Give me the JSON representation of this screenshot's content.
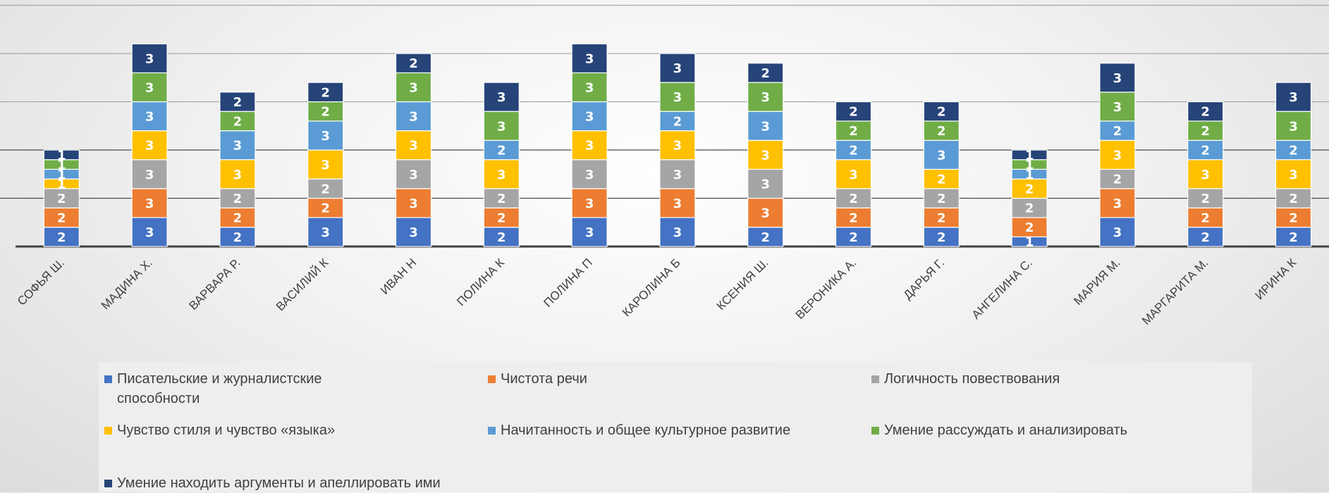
{
  "chart_data": {
    "type": "bar",
    "stacked": true,
    "categories": [
      "СОФЬЯ Ш.",
      "МАДИНА Х.",
      "ВАРВАРА Р.",
      "ВАСИЛИЙ К",
      "ИВАН Н",
      "ПОЛИНА К",
      "ПОЛИНА П",
      "КАРОЛИНА Б",
      "КСЕНИЯ Ш.",
      "ВЕРОНИКА А.",
      "ДАРЬЯ Г.",
      "АНГЕЛИНА С.",
      "МАРИЯ М.",
      "МАРГАРИТА М.",
      "ИРИНА К"
    ],
    "series": [
      {
        "name": "Писательские и журналистские способности",
        "color": "#4472C4",
        "values": [
          2,
          3,
          2,
          3,
          3,
          2,
          3,
          3,
          2,
          2,
          2,
          1,
          3,
          2,
          2
        ]
      },
      {
        "name": "Чистота речи",
        "color": "#ED7D31",
        "values": [
          2,
          3,
          2,
          2,
          3,
          2,
          3,
          3,
          3,
          2,
          2,
          2,
          3,
          2,
          2
        ]
      },
      {
        "name": "Логичность повествования",
        "color": "#A5A5A5",
        "values": [
          2,
          3,
          2,
          2,
          3,
          2,
          3,
          3,
          3,
          2,
          2,
          2,
          2,
          2,
          2
        ]
      },
      {
        "name": "Чувство стиля и чувство «языка»",
        "color": "#FFC000",
        "values": [
          1,
          3,
          3,
          3,
          3,
          3,
          3,
          3,
          3,
          3,
          2,
          2,
          3,
          3,
          3
        ]
      },
      {
        "name": "Начитанность и общее культурное развитие",
        "color": "#5B9BD5",
        "values": [
          1,
          3,
          3,
          3,
          3,
          2,
          3,
          2,
          3,
          2,
          3,
          1,
          2,
          2,
          2
        ]
      },
      {
        "name": "Умение рассуждать и анализировать",
        "color": "#70AD47",
        "values": [
          1,
          3,
          2,
          2,
          3,
          3,
          3,
          3,
          3,
          2,
          2,
          1,
          3,
          2,
          3
        ]
      },
      {
        "name": "Умение находить аргументы и апеллировать ими",
        "color": "#264478",
        "values": [
          1,
          3,
          2,
          2,
          2,
          3,
          3,
          3,
          2,
          2,
          2,
          1,
          3,
          2,
          3
        ]
      }
    ],
    "ylim": [
      0,
      25
    ],
    "grid": true,
    "legend": "bottom"
  }
}
